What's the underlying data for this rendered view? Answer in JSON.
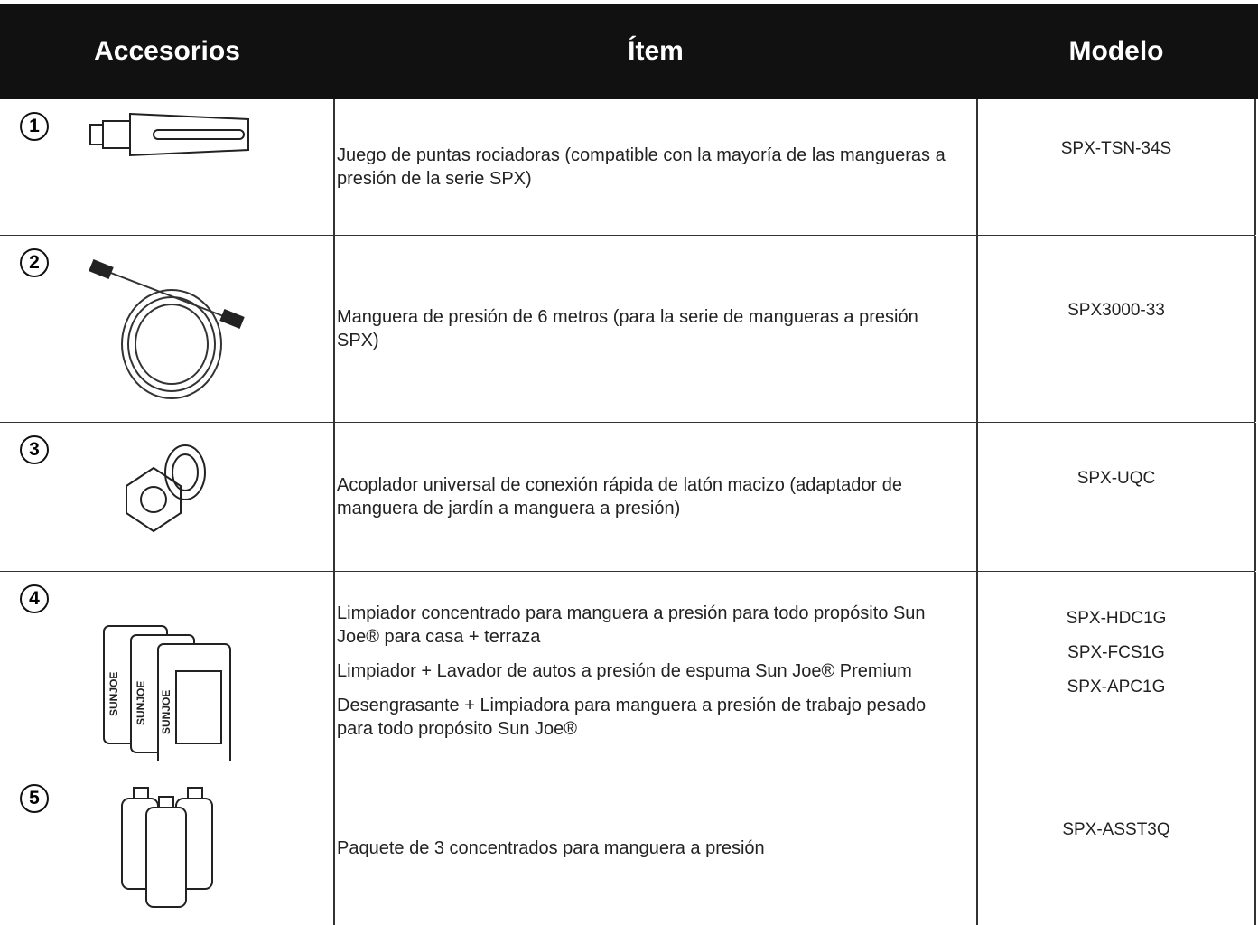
{
  "header": {
    "columns": [
      "Accesorios",
      "Ítem",
      "Modelo"
    ]
  },
  "table": {
    "rows": [
      {
        "number": "1",
        "items": [
          "Juego de puntas rociadoras (compatible con la mayoría de las mangueras  a presión de la serie SPX)"
        ],
        "models": [
          "SPX-TSN-34S"
        ]
      },
      {
        "number": "2",
        "items": [
          "Manguera de presión de 6 metros (para la serie de mangueras a presión SPX)"
        ],
        "models": [
          "SPX3000-33"
        ]
      },
      {
        "number": "3",
        "items": [
          "Acoplador universal de conexión rápida de latón macizo (adaptador de manguera de jardín a manguera a presión)"
        ],
        "models": [
          "SPX-UQC"
        ]
      },
      {
        "number": "4",
        "items": [
          "Limpiador concentrado para manguera a presión para todo propósito Sun Joe® para casa + terraza",
          "Limpiador + Lavador de autos a presión de espuma Sun Joe® Premium",
          "Desengrasante + Limpiadora para manguera a presión de trabajo pesado para todo propósito Sun Joe®"
        ],
        "models": [
          "SPX-HDC1G",
          "SPX-FCS1G",
          "SPX-APC1G"
        ]
      },
      {
        "number": "5",
        "items": [
          "Paquete de 3 concentrados para manguera a presión"
        ],
        "models": [
          "SPX-ASST3Q"
        ]
      }
    ]
  }
}
